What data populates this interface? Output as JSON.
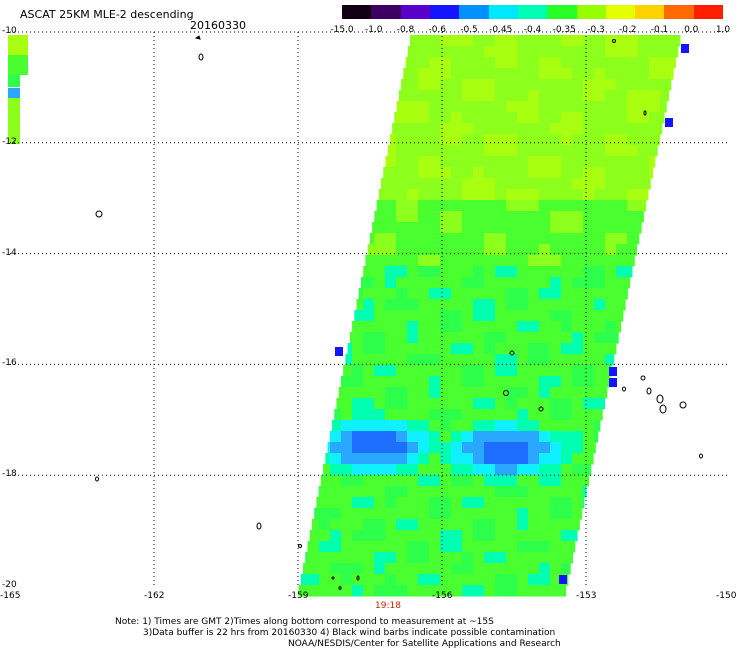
{
  "title": "ASCAT 25KM MLE-2 descending",
  "date": "20160330",
  "colorbar": {
    "labels": [
      "-15.0",
      "-1.0",
      "-0.8",
      "-0.6",
      "-0.5",
      "-0.45",
      "-0.4",
      "-0.35",
      "-0.3",
      "-0.2",
      "-0.1",
      "0.0",
      "1.0"
    ],
    "colors": [
      "#140014",
      "#3c0064",
      "#5a00c8",
      "#1414ff",
      "#0090ff",
      "#00e8ff",
      "#00ffb4",
      "#28ff28",
      "#96ff00",
      "#e6ff00",
      "#ffd200",
      "#ff6a00",
      "#ff1e00"
    ]
  },
  "axes": {
    "lat_labels": [
      "-10",
      "-12",
      "-14",
      "-16",
      "-18",
      "-20"
    ],
    "lon_labels": [
      "-165",
      "-162",
      "-159",
      "-156",
      "-153",
      "-150"
    ],
    "lat_range": [
      -20,
      -10
    ],
    "lon_range": [
      -165,
      -150
    ],
    "grid": true
  },
  "swath": {
    "time_label": "19:18",
    "dominant_color": "#49ff2f",
    "lowest_values_color": "#1e6eff"
  },
  "notes": [
    "Note: 1) Times are GMT 2)Times along bottom correspond to measurement at ~15S",
    "3)Data buffer is 22 hrs from 20160330 4) Black wind barbs indicate possible contamination",
    "NOAA/NESDIS/Center for Satellite Applications and Research"
  ]
}
